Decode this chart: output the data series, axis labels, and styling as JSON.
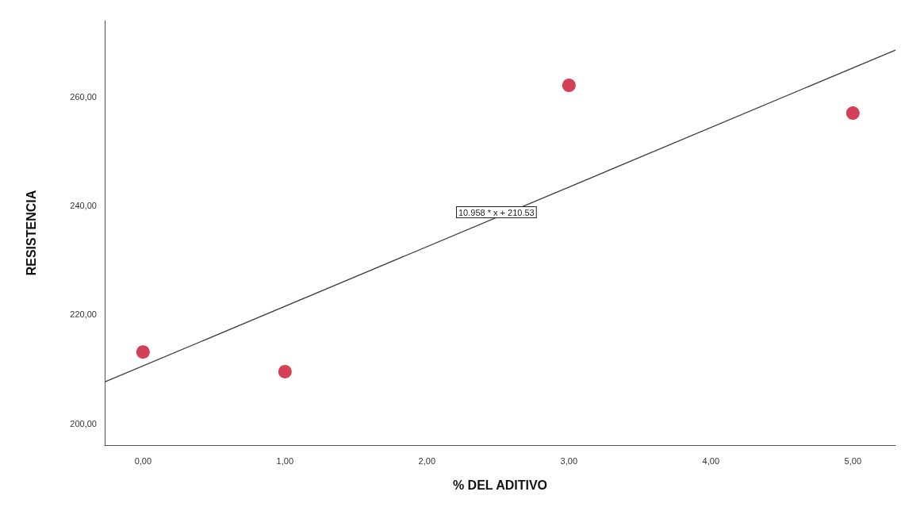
{
  "chart_data": {
    "type": "scatter",
    "xlabel": "% DEL ADITIVO",
    "ylabel": "RESISTENCIA",
    "xlim": [
      -0.27,
      5.3
    ],
    "xticks": [
      {
        "value": 0,
        "label": "0,00"
      },
      {
        "value": 1,
        "label": "1,00"
      },
      {
        "value": 2,
        "label": "2,00"
      },
      {
        "value": 3,
        "label": "3,00"
      },
      {
        "value": 4,
        "label": "4,00"
      },
      {
        "value": 5,
        "label": "5,00"
      }
    ],
    "ylim": [
      196,
      274
    ],
    "yticks": [
      {
        "value": 200,
        "label": "200,00"
      },
      {
        "value": 220,
        "label": "220,00"
      },
      {
        "value": 240,
        "label": "240,00"
      },
      {
        "value": 260,
        "label": "260,00"
      }
    ],
    "series": [
      {
        "color": "#c8102e",
        "x": [
          0,
          1,
          3,
          5
        ],
        "values": [
          213.1,
          209.5,
          262.1,
          257.0
        ]
      },
      {
        "type": "line",
        "marker": "none",
        "color": "#3c3c3c",
        "x": [
          -0.27,
          5.3
        ],
        "values": [
          207.6,
          268.6
        ]
      }
    ],
    "annotations": [
      "10.958 * x + 210.53"
    ],
    "grid": false,
    "marker": "circle"
  }
}
